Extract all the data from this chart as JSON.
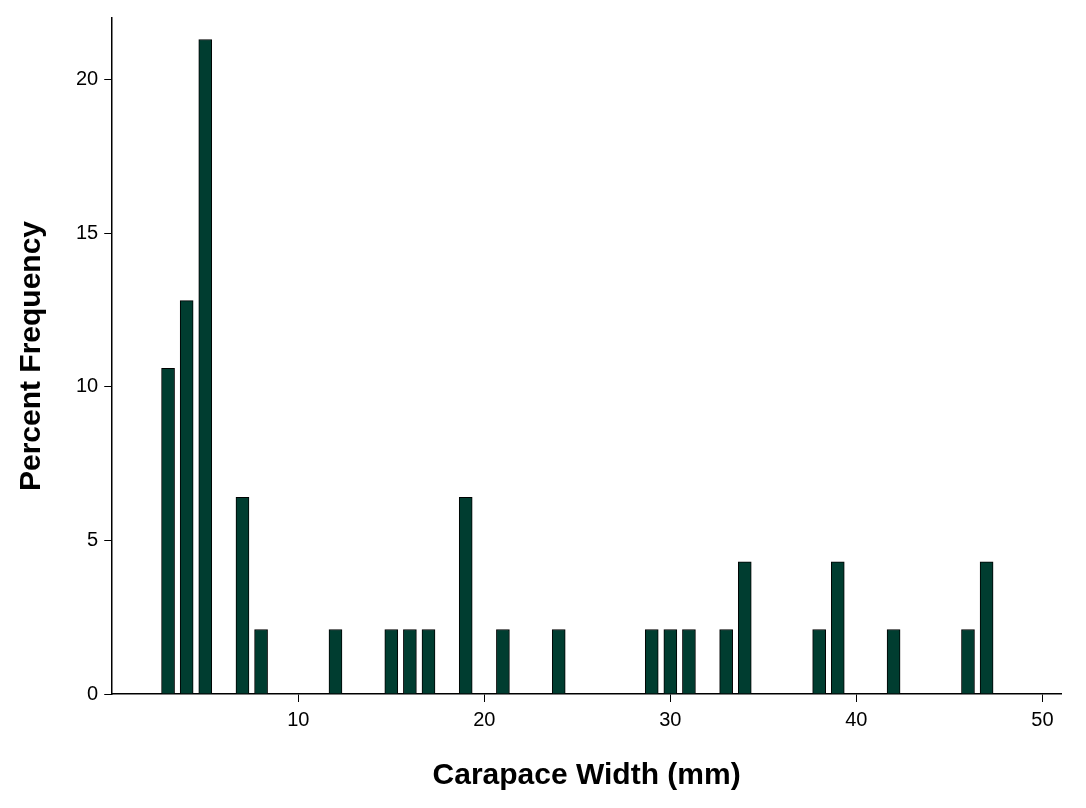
{
  "chart_data": {
    "type": "bar",
    "xlabel": "Carapace Width (mm)",
    "ylabel": "Percent Frequency",
    "x": [
      3,
      4,
      5,
      7,
      8,
      12,
      15,
      16,
      17,
      19,
      21,
      24,
      29,
      30,
      31,
      33,
      34,
      38,
      39,
      42,
      46,
      47
    ],
    "values": [
      10.6,
      12.8,
      21.3,
      6.4,
      2.1,
      2.1,
      2.1,
      2.1,
      2.1,
      6.4,
      2.1,
      2.1,
      2.1,
      2.1,
      2.1,
      2.1,
      4.3,
      2.1,
      4.3,
      2.1,
      2.1,
      4.3
    ],
    "color": "#003d30",
    "xlim": [
      0,
      51
    ],
    "xticks": [
      10,
      20,
      30,
      40,
      50
    ],
    "ylim": [
      0,
      22
    ],
    "yticks": [
      0,
      5,
      10,
      15,
      20
    ],
    "grid": false,
    "legend": false
  }
}
